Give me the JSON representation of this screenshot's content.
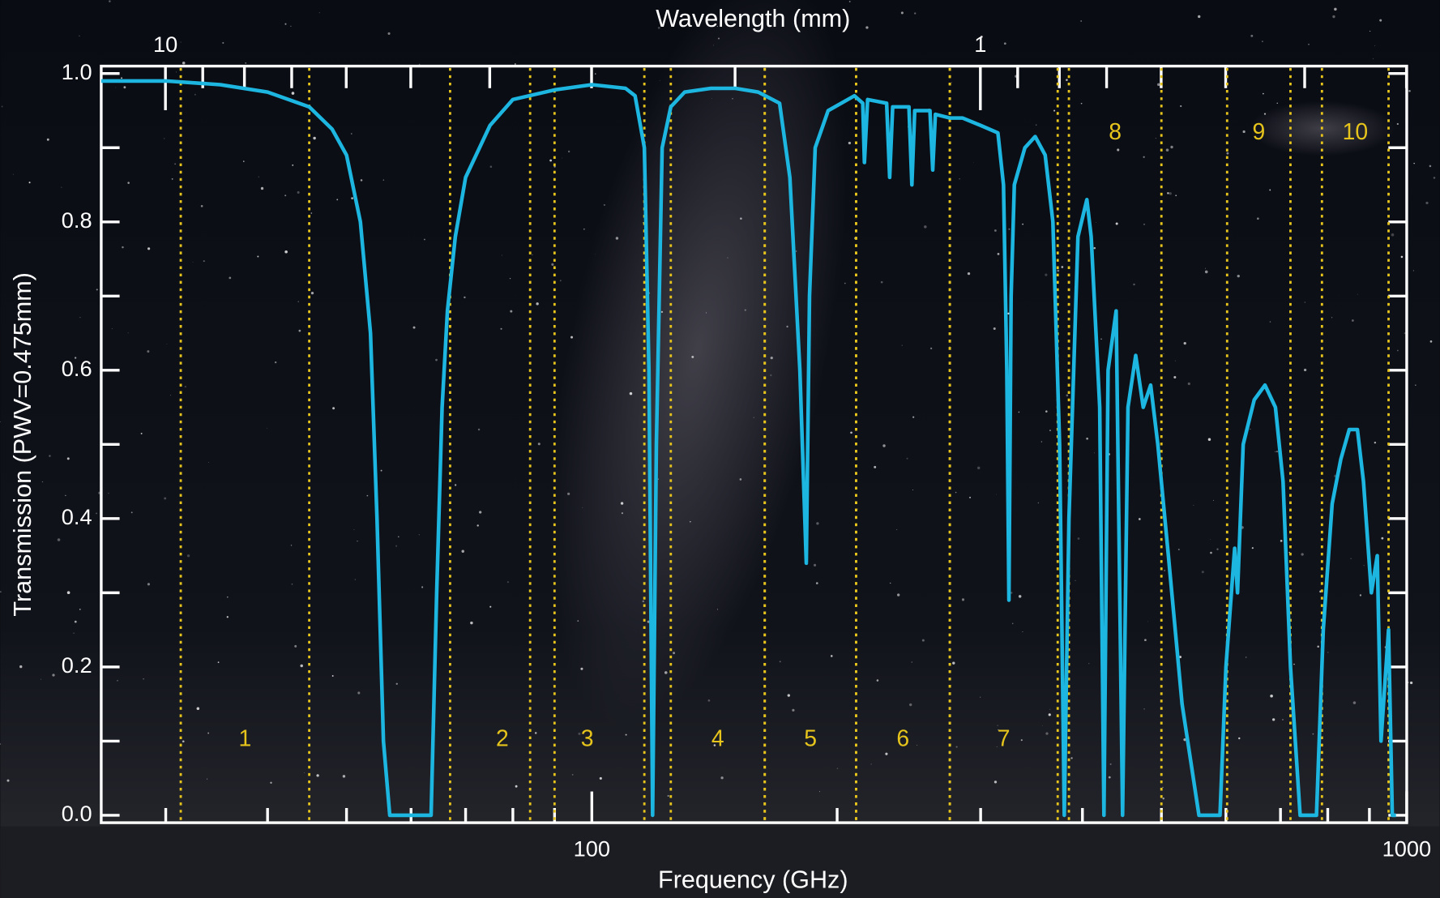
{
  "chart_data": {
    "type": "line",
    "title": "Wavelength (mm)",
    "x_label": "Frequency (GHz)",
    "y_label": "Transmission (PWV=0.475mm)",
    "log_x": true,
    "color": "#1cb6e0",
    "band_color": "#e6c41c",
    "xlim": [
      25,
      1000
    ],
    "xticks": [
      100,
      1000
    ],
    "xminorticks": [
      30,
      40,
      50,
      60,
      70,
      80,
      90,
      200,
      300,
      400,
      500,
      600,
      700,
      800,
      900
    ],
    "x2lim": [
      11.99,
      0.2998
    ],
    "x2ticks": [
      10,
      1
    ],
    "x2minorticks": [
      9,
      8,
      7,
      6,
      5,
      4,
      3,
      2,
      0.9,
      0.8,
      0.7,
      0.6,
      0.5,
      0.4,
      0.3
    ],
    "ylim": [
      -0.01,
      1.01
    ],
    "yticks": [
      {
        "value": 0,
        "label": "0.0"
      },
      0.2,
      0.4,
      0.6,
      0.8,
      {
        "value": 1,
        "label": "1.0"
      }
    ],
    "yminorticks": [
      0.1,
      0.3,
      0.5,
      0.7,
      0.9
    ],
    "bands": [
      {
        "label": "1",
        "range": [
          31.3,
          45
        ]
      },
      {
        "label": "2",
        "range": [
          67,
          90
        ]
      },
      {
        "label": "3",
        "range": [
          84,
          116
        ]
      },
      {
        "label": "4",
        "range": [
          125,
          163
        ]
      },
      {
        "label": "5",
        "range": [
          163,
          211
        ]
      },
      {
        "label": "6",
        "range": [
          211,
          275
        ]
      },
      {
        "label": "7",
        "range": [
          275,
          373
        ]
      },
      {
        "label": "8",
        "range": [
          385,
          500
        ]
      },
      {
        "label": "9",
        "range": [
          602,
          720
        ]
      },
      {
        "label": "10",
        "range": [
          787,
          950
        ]
      }
    ],
    "x": [
      25,
      30,
      35,
      40,
      45,
      48,
      50,
      52,
      53.5,
      54.5,
      55.5,
      56.5,
      60,
      63.5,
      64.5,
      65.5,
      66.5,
      68,
      70,
      75,
      80,
      90,
      100,
      110,
      113,
      116,
      117.5,
      118.75,
      120,
      122,
      125,
      130,
      140,
      150,
      160,
      170,
      175,
      180,
      183.3,
      185,
      188,
      195,
      210,
      215,
      216,
      218,
      230,
      232,
      234,
      245,
      247,
      249,
      260,
      262,
      264,
      275,
      285,
      300,
      315,
      320,
      323,
      325,
      327,
      330,
      340,
      350,
      360,
      368,
      375,
      380,
      385,
      395,
      405,
      410,
      420,
      425,
      430,
      440,
      448,
      455,
      465,
      475,
      485,
      495,
      510,
      530,
      556,
      590,
      600,
      615,
      620,
      630,
      650,
      670,
      690,
      705,
      720,
      740,
      775,
      790,
      810,
      830,
      850,
      870,
      885,
      905,
      920,
      930,
      950,
      960,
      970
    ],
    "values": [
      0.99,
      0.99,
      0.985,
      0.975,
      0.955,
      0.925,
      0.89,
      0.8,
      0.65,
      0.4,
      0.1,
      0.0,
      0.0,
      0.0,
      0.3,
      0.55,
      0.68,
      0.78,
      0.86,
      0.93,
      0.965,
      0.978,
      0.985,
      0.98,
      0.97,
      0.9,
      0.6,
      0.0,
      0.5,
      0.9,
      0.955,
      0.975,
      0.98,
      0.98,
      0.975,
      0.96,
      0.86,
      0.6,
      0.34,
      0.7,
      0.9,
      0.95,
      0.97,
      0.96,
      0.88,
      0.965,
      0.96,
      0.86,
      0.955,
      0.955,
      0.85,
      0.95,
      0.95,
      0.87,
      0.945,
      0.94,
      0.94,
      0.93,
      0.92,
      0.85,
      0.6,
      0.29,
      0.7,
      0.85,
      0.9,
      0.915,
      0.89,
      0.8,
      0.5,
      0.0,
      0.4,
      0.78,
      0.83,
      0.78,
      0.55,
      0.0,
      0.6,
      0.68,
      0.0,
      0.55,
      0.62,
      0.55,
      0.58,
      0.5,
      0.35,
      0.15,
      0.0,
      0.0,
      0.2,
      0.36,
      0.3,
      0.5,
      0.56,
      0.58,
      0.55,
      0.45,
      0.2,
      0.0,
      0.0,
      0.25,
      0.42,
      0.48,
      0.52,
      0.52,
      0.45,
      0.3,
      0.35,
      0.1,
      0.25,
      0.0,
      0.0
    ]
  }
}
